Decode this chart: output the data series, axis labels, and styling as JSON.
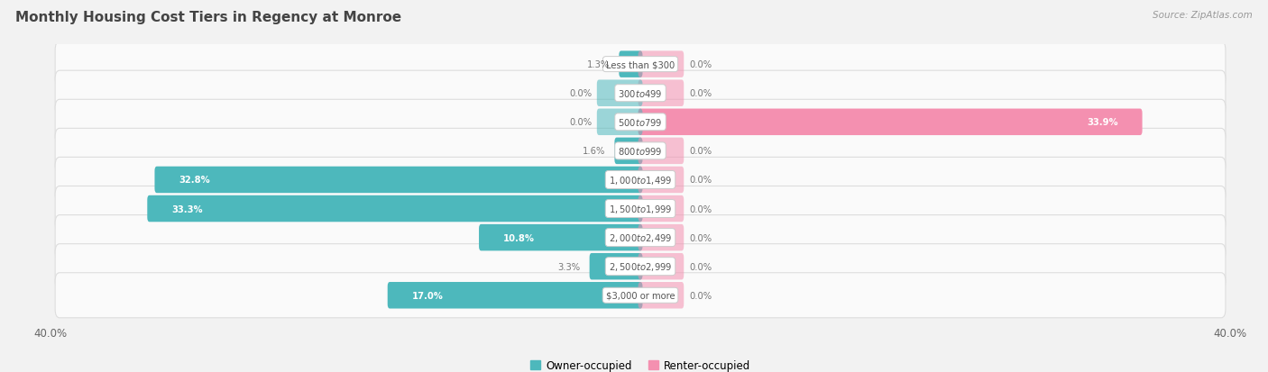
{
  "title": "Monthly Housing Cost Tiers in Regency at Monroe",
  "source": "Source: ZipAtlas.com",
  "categories": [
    "Less than $300",
    "$300 to $499",
    "$500 to $799",
    "$800 to $999",
    "$1,000 to $1,499",
    "$1,500 to $1,999",
    "$2,000 to $2,499",
    "$2,500 to $2,999",
    "$3,000 or more"
  ],
  "owner_values": [
    1.3,
    0.0,
    0.0,
    1.6,
    32.8,
    33.3,
    10.8,
    3.3,
    17.0
  ],
  "renter_values": [
    0.0,
    0.0,
    33.9,
    0.0,
    0.0,
    0.0,
    0.0,
    0.0,
    0.0
  ],
  "owner_color": "#4db8bc",
  "renter_color": "#f490b0",
  "axis_limit": 40.0,
  "background_color": "#f2f2f2",
  "row_light_color": "#fafafa",
  "row_dark_color": "#e8e8e8",
  "legend_owner": "Owner-occupied",
  "legend_renter": "Renter-occupied",
  "inside_label_color": "#ffffff",
  "outside_label_color": "#777777",
  "cat_label_color": "#555555",
  "title_color": "#444444",
  "source_color": "#999999"
}
